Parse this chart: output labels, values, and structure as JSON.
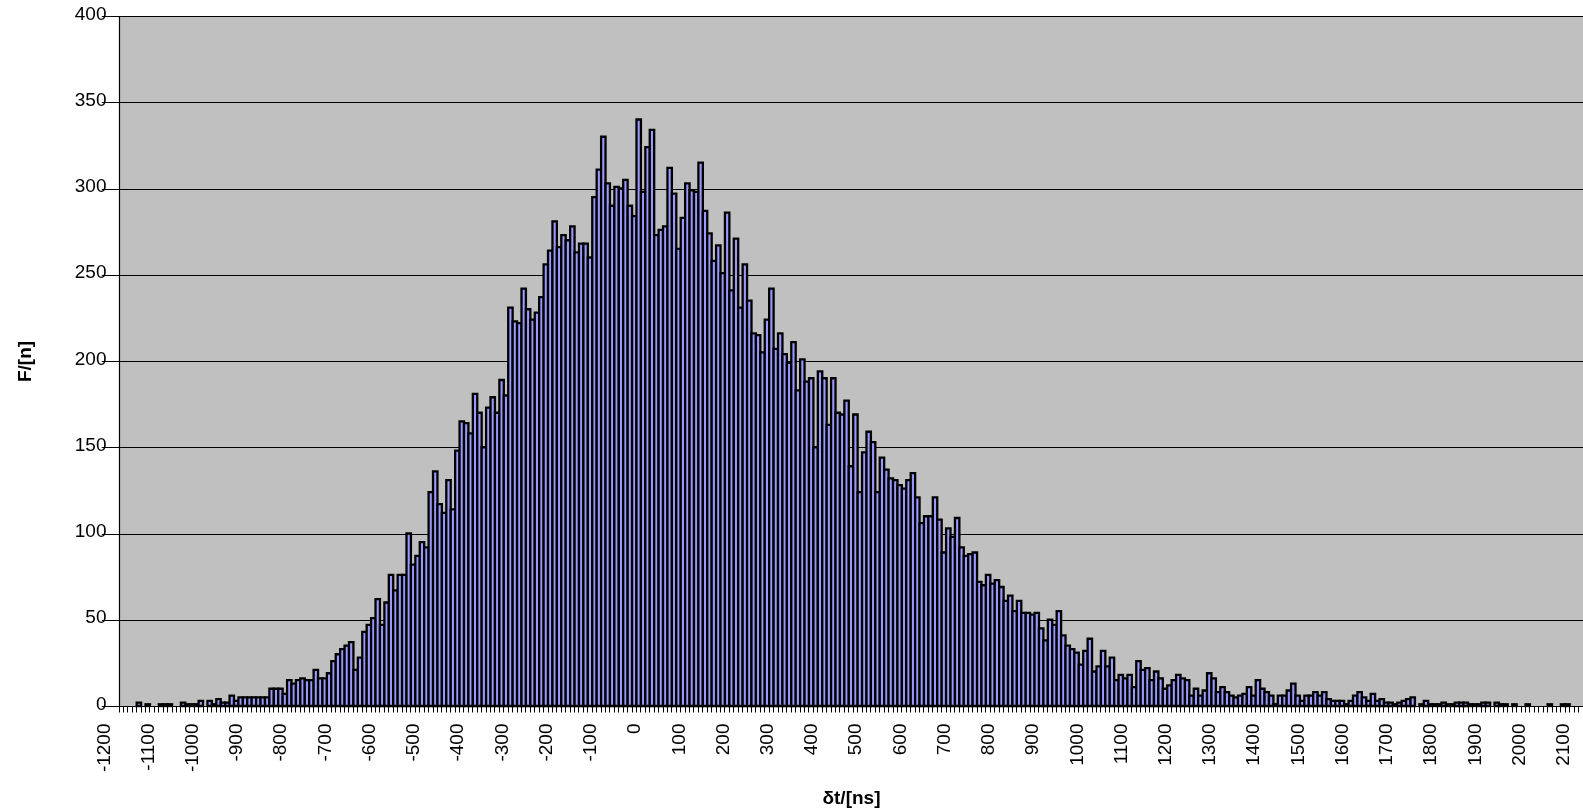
{
  "chart_data": {
    "type": "bar",
    "xlabel": "δt/[ns]",
    "ylabel": "F/[n]",
    "color": "#9999ff",
    "ylim": [
      0,
      400
    ],
    "yticks": [
      0,
      50,
      100,
      150,
      200,
      250,
      300,
      350,
      400
    ],
    "grid": "y",
    "categories": [
      "-1200",
      null,
      null,
      null,
      null,
      null,
      null,
      null,
      null,
      null,
      "-1100",
      null,
      null,
      null,
      null,
      null,
      null,
      null,
      null,
      null,
      "-1000",
      null,
      null,
      null,
      null,
      null,
      null,
      null,
      null,
      null,
      "-900",
      null,
      null,
      null,
      null,
      null,
      null,
      null,
      null,
      null,
      "-800",
      null,
      null,
      null,
      null,
      null,
      null,
      null,
      null,
      null,
      "-700",
      null,
      null,
      null,
      null,
      null,
      null,
      null,
      null,
      null,
      "-600",
      null,
      null,
      null,
      null,
      null,
      null,
      null,
      null,
      null,
      "-500",
      null,
      null,
      null,
      null,
      null,
      null,
      null,
      null,
      null,
      "-400",
      null,
      null,
      null,
      null,
      null,
      null,
      null,
      null,
      null,
      "-300",
      null,
      null,
      null,
      null,
      null,
      null,
      null,
      null,
      null,
      "-200",
      null,
      null,
      null,
      null,
      null,
      null,
      null,
      null,
      null,
      "-100",
      null,
      null,
      null,
      null,
      null,
      null,
      null,
      null,
      null,
      "0",
      null,
      null,
      null,
      null,
      null,
      null,
      null,
      null,
      null,
      "100",
      null,
      null,
      null,
      null,
      null,
      null,
      null,
      null,
      null,
      "200",
      null,
      null,
      null,
      null,
      null,
      null,
      null,
      null,
      null,
      "300",
      null,
      null,
      null,
      null,
      null,
      null,
      null,
      null,
      null,
      "400",
      null,
      null,
      null,
      null,
      null,
      null,
      null,
      null,
      null,
      "500",
      null,
      null,
      null,
      null,
      null,
      null,
      null,
      null,
      null,
      "600",
      null,
      null,
      null,
      null,
      null,
      null,
      null,
      null,
      null,
      "700",
      null,
      null,
      null,
      null,
      null,
      null,
      null,
      null,
      null,
      "800",
      null,
      null,
      null,
      null,
      null,
      null,
      null,
      null,
      null,
      "900",
      null,
      null,
      null,
      null,
      null,
      null,
      null,
      null,
      null,
      "1000",
      null,
      null,
      null,
      null,
      null,
      null,
      null,
      null,
      null,
      "1100",
      null,
      null,
      null,
      null,
      null,
      null,
      null,
      null,
      null,
      "1200",
      null,
      null,
      null,
      null,
      null,
      null,
      null,
      null,
      null,
      "1300",
      null,
      null,
      null,
      null,
      null,
      null,
      null,
      null,
      null,
      "1400",
      null,
      null,
      null,
      null,
      null,
      null,
      null,
      null,
      null,
      "1500",
      null,
      null,
      null,
      null,
      null,
      null,
      null,
      null,
      null,
      "1600",
      null,
      null,
      null,
      null,
      null,
      null,
      null,
      null,
      null,
      "1700",
      null,
      null,
      null,
      null,
      null,
      null,
      null,
      null,
      null,
      "1800",
      null,
      null,
      null,
      null,
      null,
      null,
      null,
      null,
      null,
      "1900",
      null,
      null,
      null,
      null,
      null,
      null,
      null,
      null,
      null,
      "2000",
      null,
      null,
      null,
      null,
      null,
      null,
      null,
      null,
      null,
      "2100",
      null,
      null,
      null,
      null
    ],
    "values": [
      null,
      null,
      null,
      null,
      0,
      0,
      0,
      0,
      2,
      0,
      1,
      0,
      0,
      1,
      1,
      1,
      0,
      0,
      2,
      1,
      1,
      1,
      3,
      0,
      3,
      1,
      4,
      2,
      2,
      6,
      3,
      5,
      5,
      5,
      5,
      5,
      5,
      5,
      10,
      10,
      10,
      7,
      15,
      13,
      15,
      16,
      15,
      15,
      21,
      16,
      16,
      19,
      26,
      30,
      33,
      35,
      37,
      21,
      28,
      43,
      47,
      51,
      62,
      47,
      60,
      76,
      67,
      76,
      76,
      100,
      82,
      87,
      95,
      92,
      124,
      136,
      117,
      112,
      131,
      114,
      148,
      165,
      164,
      158,
      181,
      170,
      150,
      173,
      179,
      170,
      189,
      180,
      231,
      223,
      222,
      242,
      230,
      224,
      228,
      237,
      256,
      264,
      281,
      266,
      273,
      270,
      278,
      263,
      268,
      268,
      260,
      295,
      311,
      330,
      303,
      290,
      301,
      300,
      305,
      290,
      284,
      340,
      298,
      324,
      334,
      273,
      276,
      278,
      312,
      297,
      265,
      283,
      303,
      299,
      298,
      315,
      287,
      274,
      258,
      267,
      251,
      286,
      241,
      271,
      231,
      256,
      235,
      216,
      215,
      205,
      224,
      242,
      207,
      216,
      204,
      199,
      211,
      183,
      201,
      188,
      190,
      150,
      194,
      190,
      163,
      190,
      170,
      169,
      177,
      139,
      169,
      124,
      147,
      159,
      153,
      124,
      144,
      137,
      132,
      131,
      128,
      126,
      131,
      135,
      121,
      106,
      110,
      110,
      121,
      108,
      89,
      103,
      98,
      109,
      92,
      87,
      88,
      89,
      72,
      70,
      76,
      71,
      73,
      69,
      61,
      64,
      55,
      61,
      54,
      54,
      53,
      54,
      45,
      38,
      50,
      47,
      55,
      41,
      35,
      33,
      31,
      24,
      32,
      39,
      20,
      23,
      32,
      23,
      28,
      15,
      18,
      16,
      18,
      11,
      26,
      21,
      22,
      15,
      20,
      16,
      10,
      12,
      15,
      18,
      16,
      15,
      6,
      10,
      6,
      9,
      19,
      16,
      8,
      11,
      8,
      6,
      5,
      6,
      7,
      11,
      6,
      15,
      10,
      8,
      6,
      1,
      6,
      6,
      9,
      13,
      6,
      3,
      6,
      6,
      8,
      6,
      8,
      4,
      3,
      3,
      3,
      1,
      3,
      6,
      8,
      5,
      3,
      7,
      3,
      4,
      2,
      2,
      1,
      2,
      3,
      4,
      5,
      0,
      1,
      3,
      1,
      1,
      1,
      2,
      1,
      1,
      2,
      2,
      2,
      1,
      1,
      1,
      2,
      2,
      0,
      2,
      1,
      1,
      0,
      1,
      0,
      0,
      1,
      0,
      0,
      0,
      0,
      1,
      0,
      0,
      1,
      1,
      0,
      0,
      0
    ]
  }
}
